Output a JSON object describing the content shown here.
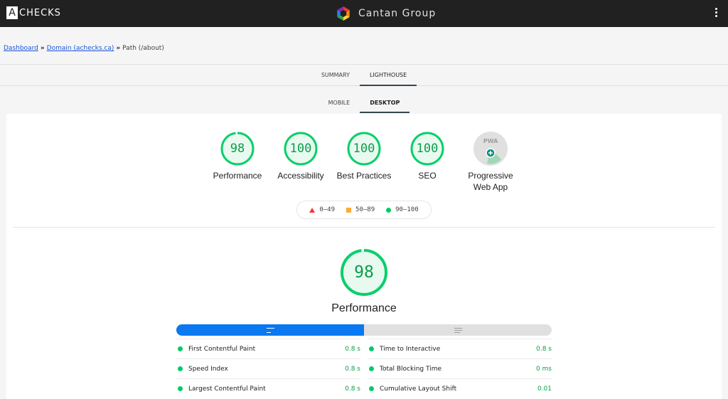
{
  "header": {
    "logo_letter": "A",
    "logo_text": "CHECKS",
    "brand_name": "Cantan Group"
  },
  "breadcrumb": {
    "items": [
      "Dashboard",
      "Domain (achecks.ca)",
      "Path (/about)"
    ],
    "separator": "»"
  },
  "tabs": [
    {
      "label": "SUMMARY",
      "active": false
    },
    {
      "label": "LIGHTHOUSE",
      "active": true
    }
  ],
  "subtabs": [
    {
      "label": "MOBILE",
      "active": false
    },
    {
      "label": "DESKTOP",
      "active": true
    }
  ],
  "gauges": [
    {
      "label": "Performance",
      "score": "98",
      "value": 0.98
    },
    {
      "label": "Accessibility",
      "score": "100",
      "value": 1.0
    },
    {
      "label": "Best Practices",
      "score": "100",
      "value": 1.0
    },
    {
      "label": "SEO",
      "score": "100",
      "value": 1.0
    },
    {
      "label": "Progressive Web App",
      "score": "",
      "value": null,
      "icon": "pwa-badge-icon"
    }
  ],
  "legend": [
    {
      "label": "0–49",
      "shape": "triangle",
      "color": "#ff3333"
    },
    {
      "label": "50–89",
      "shape": "square",
      "color": "#ffaa33"
    },
    {
      "label": "90–100",
      "shape": "circle",
      "color": "#00cc66"
    }
  ],
  "performance": {
    "score": "98",
    "value": 0.98,
    "title": "Performance"
  },
  "metrics": [
    {
      "name": "First Contentful Paint",
      "value": "0.8 s"
    },
    {
      "name": "Time to Interactive",
      "value": "0.8 s"
    },
    {
      "name": "Speed Index",
      "value": "0.8 s"
    },
    {
      "name": "Total Blocking Time",
      "value": "0 ms"
    },
    {
      "name": "Largest Contentful Paint",
      "value": "0.8 s"
    },
    {
      "name": "Cumulative Layout Shift",
      "value": "0.01"
    }
  ],
  "colors": {
    "pass": "#0cce6b",
    "pass_text": "#0c9c4a",
    "accent_blue": "#0a78f0",
    "topbar": "#212121"
  }
}
